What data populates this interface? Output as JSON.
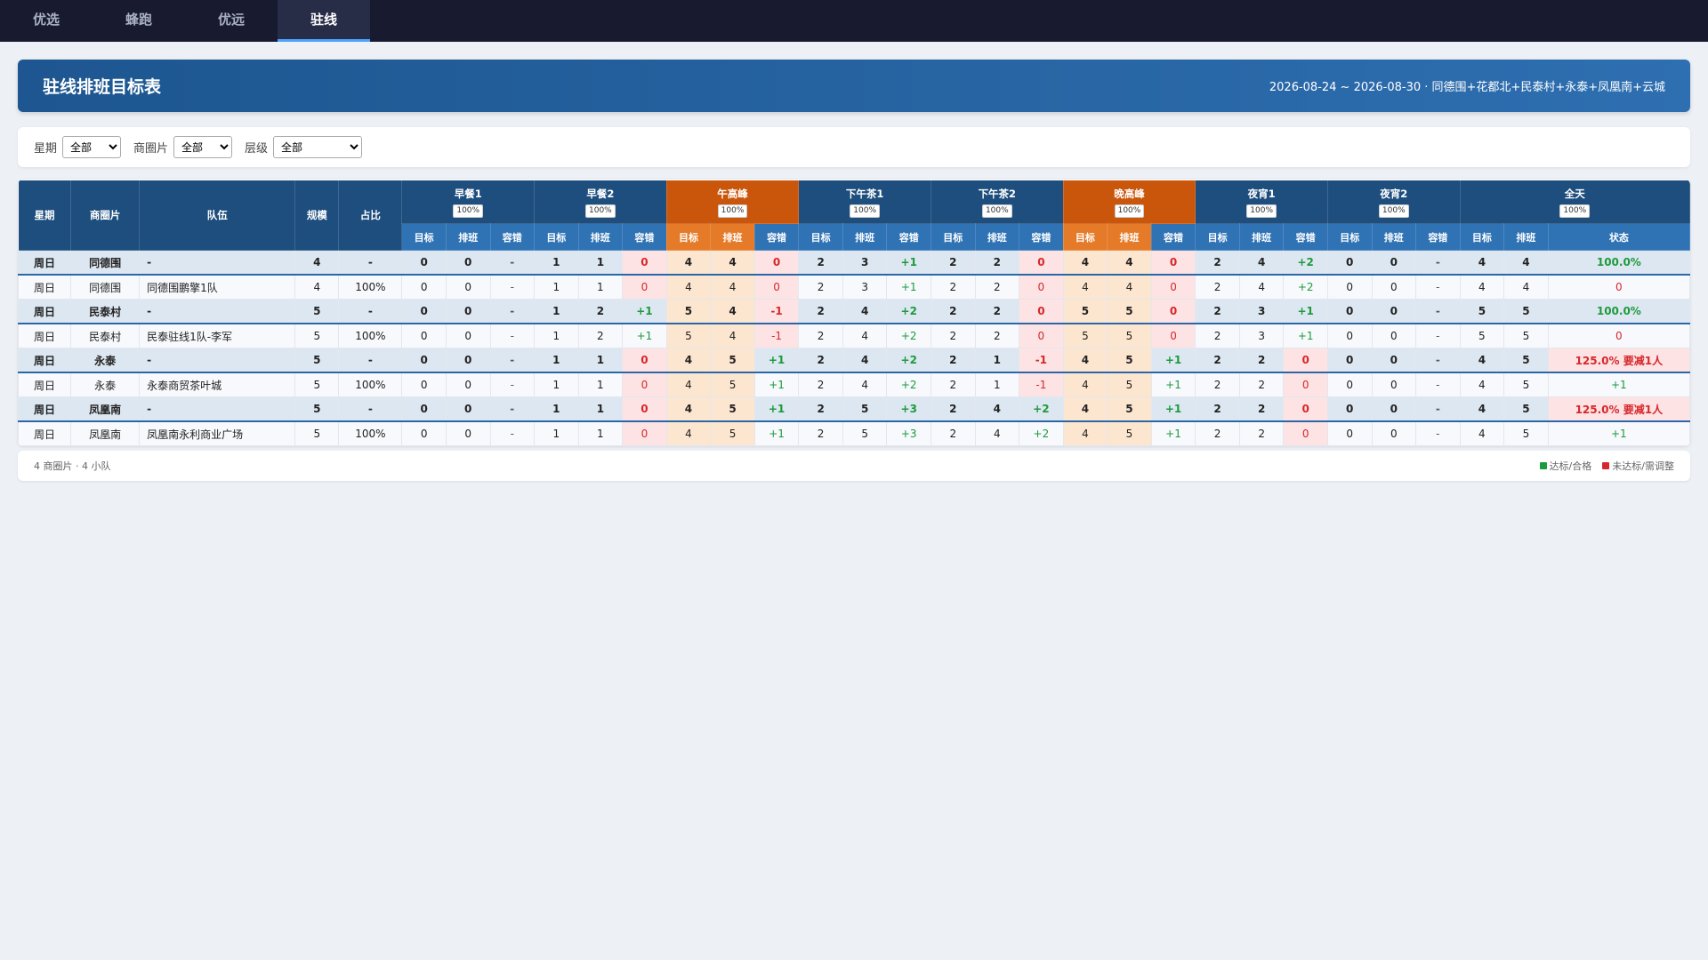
{
  "tabs": {
    "items": [
      "优选",
      "蜂跑",
      "优远",
      "驻线"
    ],
    "active": 3
  },
  "header": {
    "title": "驻线排班目标表",
    "range": "2026-08-24 ~ 2026-08-30 · 同德围+花都北+民泰村+永泰+凤凰南+云城"
  },
  "filters": [
    {
      "label": "星期",
      "value": "全部"
    },
    {
      "label": "商圈片",
      "value": "全部"
    },
    {
      "label": "层级",
      "value": "全部"
    }
  ],
  "table": {
    "fixed_headers": [
      "星期",
      "商圈片",
      "队伍",
      "规模",
      "占比"
    ],
    "sub_headers": [
      "目标",
      "排班",
      "容错"
    ],
    "periods": [
      {
        "name": "早餐1",
        "tolerance": "100%",
        "peak": false
      },
      {
        "name": "早餐2",
        "tolerance": "100%",
        "peak": false
      },
      {
        "name": "午高峰",
        "tolerance": "100%",
        "peak": true
      },
      {
        "name": "下午茶1",
        "tolerance": "100%",
        "peak": false
      },
      {
        "name": "下午茶2",
        "tolerance": "100%",
        "peak": false
      },
      {
        "name": "晚高峰",
        "tolerance": "100%",
        "peak": true
      },
      {
        "name": "夜宵1",
        "tolerance": "100%",
        "peak": false
      },
      {
        "name": "夜宵2",
        "tolerance": "100%",
        "peak": false
      }
    ],
    "total": {
      "name": "全天",
      "tolerance": "100%",
      "sub_headers": [
        "目标",
        "排班",
        "状态"
      ]
    },
    "rows": [
      {
        "summary": true,
        "ok": true,
        "cells": [
          "周日",
          "同德围",
          "-",
          4,
          "-",
          0,
          0,
          "-",
          1,
          1,
          "0",
          4,
          4,
          "0",
          2,
          3,
          "+1",
          2,
          2,
          "0",
          4,
          4,
          "0",
          2,
          4,
          "+2",
          0,
          0,
          "-",
          4,
          4,
          "100.0%"
        ]
      },
      {
        "summary": false,
        "ok": false,
        "cells": [
          "周日",
          "同德围",
          "同德围鹏擎1队",
          4,
          "100%",
          0,
          0,
          "-",
          1,
          1,
          "0",
          4,
          4,
          "0",
          2,
          3,
          "+1",
          2,
          2,
          "0",
          4,
          4,
          "0",
          2,
          4,
          "+2",
          0,
          0,
          "-",
          4,
          4,
          "0"
        ]
      },
      {
        "summary": true,
        "ok": true,
        "cells": [
          "周日",
          "民泰村",
          "-",
          5,
          "-",
          0,
          0,
          "-",
          1,
          2,
          "+1",
          5,
          4,
          "-1",
          2,
          4,
          "+2",
          2,
          2,
          "0",
          5,
          5,
          "0",
          2,
          3,
          "+1",
          0,
          0,
          "-",
          5,
          5,
          "100.0%"
        ]
      },
      {
        "summary": false,
        "ok": false,
        "cells": [
          "周日",
          "民泰村",
          "民泰驻线1队-李军",
          5,
          "100%",
          0,
          0,
          "-",
          1,
          2,
          "+1",
          5,
          4,
          "-1",
          2,
          4,
          "+2",
          2,
          2,
          "0",
          5,
          5,
          "0",
          2,
          3,
          "+1",
          0,
          0,
          "-",
          5,
          5,
          "0"
        ]
      },
      {
        "summary": true,
        "ok": false,
        "cells": [
          "周日",
          "永泰",
          "-",
          5,
          "-",
          0,
          0,
          "-",
          1,
          1,
          "0",
          4,
          5,
          "+1",
          2,
          4,
          "+2",
          2,
          1,
          "-1",
          4,
          5,
          "+1",
          2,
          2,
          "0",
          0,
          0,
          "-",
          4,
          5,
          "125.0% 要减1人"
        ]
      },
      {
        "summary": false,
        "ok": true,
        "cells": [
          "周日",
          "永泰",
          "永泰商贸茶叶城",
          5,
          "100%",
          0,
          0,
          "-",
          1,
          1,
          "0",
          4,
          5,
          "+1",
          2,
          4,
          "+2",
          2,
          1,
          "-1",
          4,
          5,
          "+1",
          2,
          2,
          "0",
          0,
          0,
          "-",
          4,
          5,
          "+1"
        ]
      },
      {
        "summary": true,
        "ok": false,
        "cells": [
          "周日",
          "凤凰南",
          "-",
          5,
          "-",
          0,
          0,
          "-",
          1,
          1,
          "0",
          4,
          5,
          "+1",
          2,
          5,
          "+3",
          2,
          4,
          "+2",
          4,
          5,
          "+1",
          2,
          2,
          "0",
          0,
          0,
          "-",
          4,
          5,
          "125.0% 要减1人"
        ]
      },
      {
        "summary": false,
        "ok": true,
        "cells": [
          "周日",
          "凤凰南",
          "凤凰南永利商业广场",
          5,
          "100%",
          0,
          0,
          "-",
          1,
          1,
          "0",
          4,
          5,
          "+1",
          2,
          5,
          "+3",
          2,
          4,
          "+2",
          4,
          5,
          "+1",
          2,
          2,
          "0",
          0,
          0,
          "-",
          4,
          5,
          "+1"
        ]
      }
    ]
  },
  "footer": {
    "summary": "4 商圈片 · 4 小队",
    "legend": [
      {
        "label": "达标/合格",
        "color": "#1e9a3e"
      },
      {
        "label": "未达标/需调整",
        "color": "#d6282c"
      }
    ]
  }
}
